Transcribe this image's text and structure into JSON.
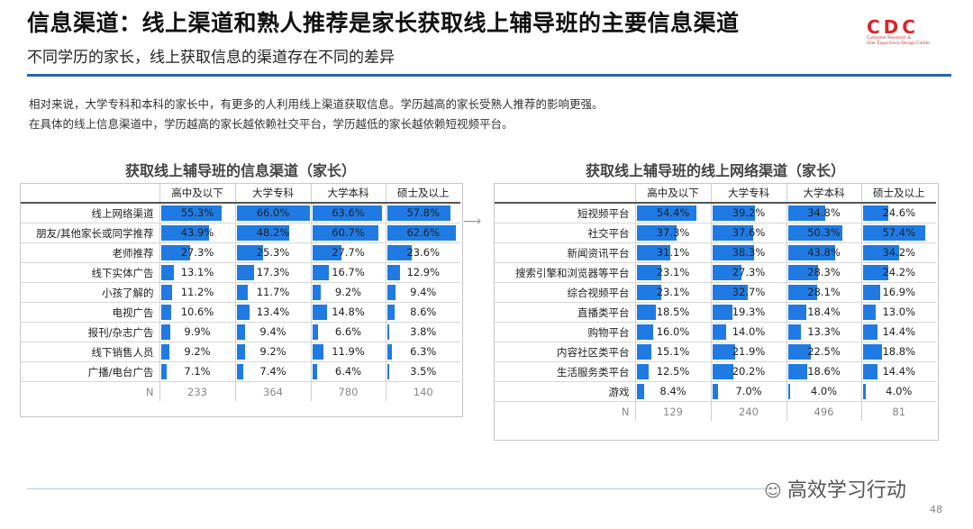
{
  "header": {
    "title": "信息渠道：线上渠道和熟人推荐是家长获取线上辅导班的主要信息渠道",
    "subtitle": "不同学历的家长，线上获取信息的渠道存在不同的差异",
    "logo_mark": "CDC",
    "logo_tagline_1": "Customer Research &",
    "logo_tagline_2": "User Experience Design Center"
  },
  "description": {
    "line1": "相对来说，大学专科和本科的家长中，有更多的人利用线上渠道获取信息。学历越高的家长受熟人推荐的影响更强。",
    "line2": "在具体的线上信息渠道中，学历越高的家长越依赖社交平台，学历越低的家长越依赖短视频平台。"
  },
  "colors": {
    "bar": "#1f7be3",
    "rule": "#2a63b3",
    "logo": "#d6262b"
  },
  "left_table": {
    "title": "获取线上辅导班的信息渠道（家长）",
    "columns": [
      "高中及以下",
      "大学专科",
      "大学本科",
      "硕士及以上"
    ],
    "rows": [
      {
        "label": "线上网络渠道",
        "values": [
          55.3,
          66.0,
          63.6,
          57.8
        ]
      },
      {
        "label": "朋友/其他家长或同学推荐",
        "values": [
          43.9,
          48.2,
          60.7,
          62.6
        ]
      },
      {
        "label": "老师推荐",
        "values": [
          27.3,
          25.3,
          27.7,
          23.6
        ]
      },
      {
        "label": "线下实体广告",
        "values": [
          13.1,
          17.3,
          16.7,
          12.9
        ]
      },
      {
        "label": "小孩了解的",
        "values": [
          11.2,
          11.7,
          9.2,
          9.4
        ]
      },
      {
        "label": "电视广告",
        "values": [
          10.6,
          13.4,
          14.8,
          8.6
        ]
      },
      {
        "label": "报刊/杂志广告",
        "values": [
          9.9,
          9.4,
          6.6,
          3.8
        ]
      },
      {
        "label": "线下销售人员",
        "values": [
          9.2,
          9.2,
          11.9,
          6.3
        ]
      },
      {
        "label": "广播/电台广告",
        "values": [
          7.1,
          7.4,
          6.4,
          3.5
        ]
      }
    ],
    "n_label": "N",
    "n_values": [
      "233",
      "364",
      "780",
      "140"
    ]
  },
  "right_table": {
    "title": "获取线上辅导班的线上网络渠道（家长）",
    "columns": [
      "高中及以下",
      "大学专科",
      "大学本科",
      "硕士及以上"
    ],
    "rows": [
      {
        "label": "短视频平台",
        "values": [
          54.4,
          39.2,
          34.8,
          24.6
        ]
      },
      {
        "label": "社交平台",
        "values": [
          37.3,
          37.6,
          50.3,
          57.4
        ]
      },
      {
        "label": "新闻资讯平台",
        "values": [
          31.1,
          38.3,
          43.8,
          34.2
        ]
      },
      {
        "label": "搜索引擎和浏览器等平台",
        "values": [
          23.1,
          27.3,
          28.3,
          24.2
        ]
      },
      {
        "label": "综合视频平台",
        "values": [
          23.1,
          32.7,
          28.1,
          16.9
        ]
      },
      {
        "label": "直播类平台",
        "values": [
          18.5,
          19.3,
          18.4,
          13.0
        ]
      },
      {
        "label": "购物平台",
        "values": [
          16.0,
          14.0,
          13.3,
          14.4
        ]
      },
      {
        "label": "内容社区类平台",
        "values": [
          15.1,
          21.9,
          22.5,
          18.8
        ]
      },
      {
        "label": "生活服务类平台",
        "values": [
          12.5,
          20.2,
          18.6,
          14.4
        ]
      },
      {
        "label": "游戏",
        "values": [
          8.4,
          7.0,
          4.0,
          4.0
        ]
      }
    ],
    "n_label": "N",
    "n_values": [
      "129",
      "240",
      "496",
      "81"
    ]
  },
  "footer": {
    "watermark": "高效学习行动",
    "page_number": "48"
  }
}
